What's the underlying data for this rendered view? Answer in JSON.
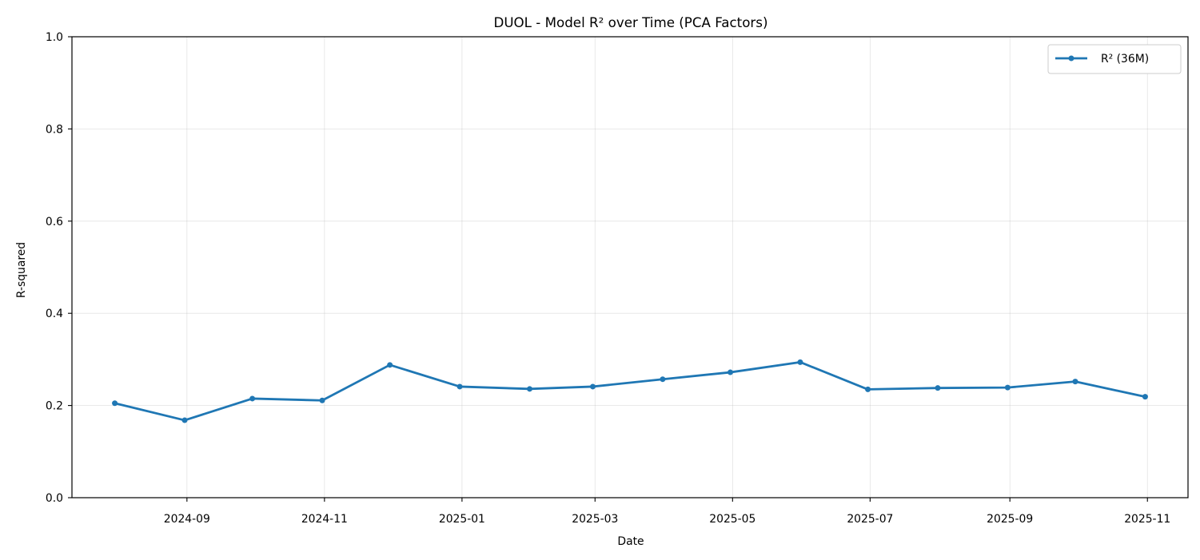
{
  "chart_data": {
    "type": "line",
    "title": "DUOL - Model R² over Time (PCA Factors)",
    "xlabel": "Date",
    "ylabel": "R-squared",
    "ylim": [
      0,
      1
    ],
    "xlim": [
      "2024-07-12",
      "2025-11-19"
    ],
    "grid": true,
    "legend_position": "top-right",
    "x_ticks": [
      "2024-09-01",
      "2024-11-01",
      "2025-01-01",
      "2025-03-01",
      "2025-05-01",
      "2025-07-01",
      "2025-09-01",
      "2025-11-01"
    ],
    "x_tick_labels": [
      "2024-09",
      "2024-11",
      "2025-01",
      "2025-03",
      "2025-05",
      "2025-07",
      "2025-09",
      "2025-11"
    ],
    "y_ticks": [
      0,
      0.2,
      0.4,
      0.6,
      0.8,
      1.0
    ],
    "y_tick_labels": [
      "0.0",
      "0.2",
      "0.4",
      "0.6",
      "0.8",
      "1.0"
    ],
    "series": [
      {
        "name": "R² (36M)",
        "color": "#1f77b4",
        "marker": "circle",
        "x": [
          "2024-07-31",
          "2024-08-31",
          "2024-09-30",
          "2024-10-31",
          "2024-11-30",
          "2024-12-31",
          "2025-01-31",
          "2025-02-28",
          "2025-03-31",
          "2025-04-30",
          "2025-05-31",
          "2025-06-30",
          "2025-07-31",
          "2025-08-31",
          "2025-09-30",
          "2025-10-31"
        ],
        "y": [
          0.205,
          0.168,
          0.215,
          0.211,
          0.288,
          0.241,
          0.236,
          0.241,
          0.257,
          0.272,
          0.294,
          0.235,
          0.238,
          0.239,
          0.252,
          0.219
        ]
      }
    ]
  }
}
